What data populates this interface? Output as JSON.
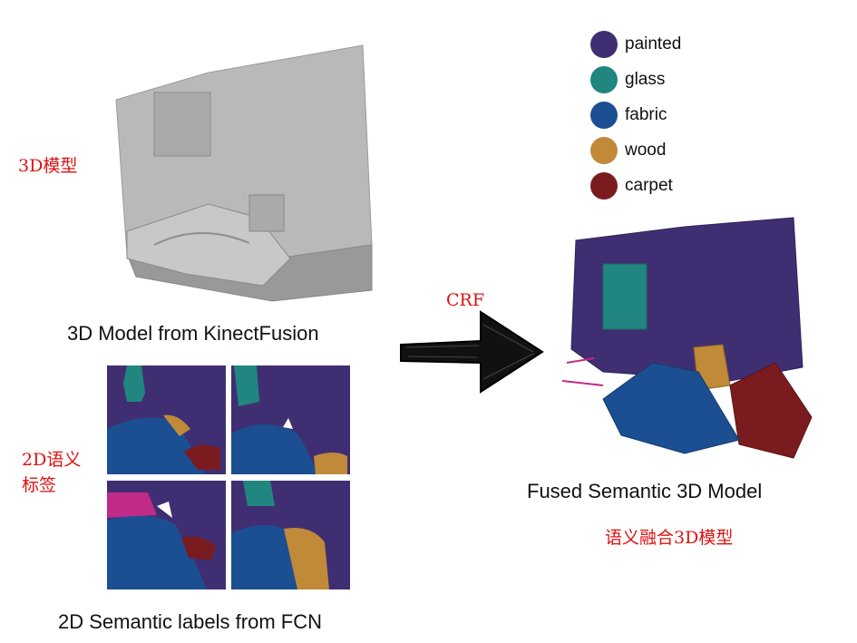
{
  "annotations": {
    "model_3d_cn": "3D模型",
    "labels_2d_cn_line1": "2D语义",
    "labels_2d_cn_line2": "标签",
    "crf": "CRF",
    "fused_cn": "语义融合3D模型"
  },
  "captions": {
    "model_3d": "3D Model from KinectFusion",
    "labels_2d": "2D Semantic labels from FCN",
    "fused": "Fused Semantic 3D Model"
  },
  "legend": [
    {
      "label": "painted",
      "color": "#3f2f72"
    },
    {
      "label": "glass",
      "color": "#21867f"
    },
    {
      "label": "fabric",
      "color": "#1b4f92"
    },
    {
      "label": "wood",
      "color": "#c08a39"
    },
    {
      "label": "carpet",
      "color": "#7a1c1f"
    }
  ]
}
